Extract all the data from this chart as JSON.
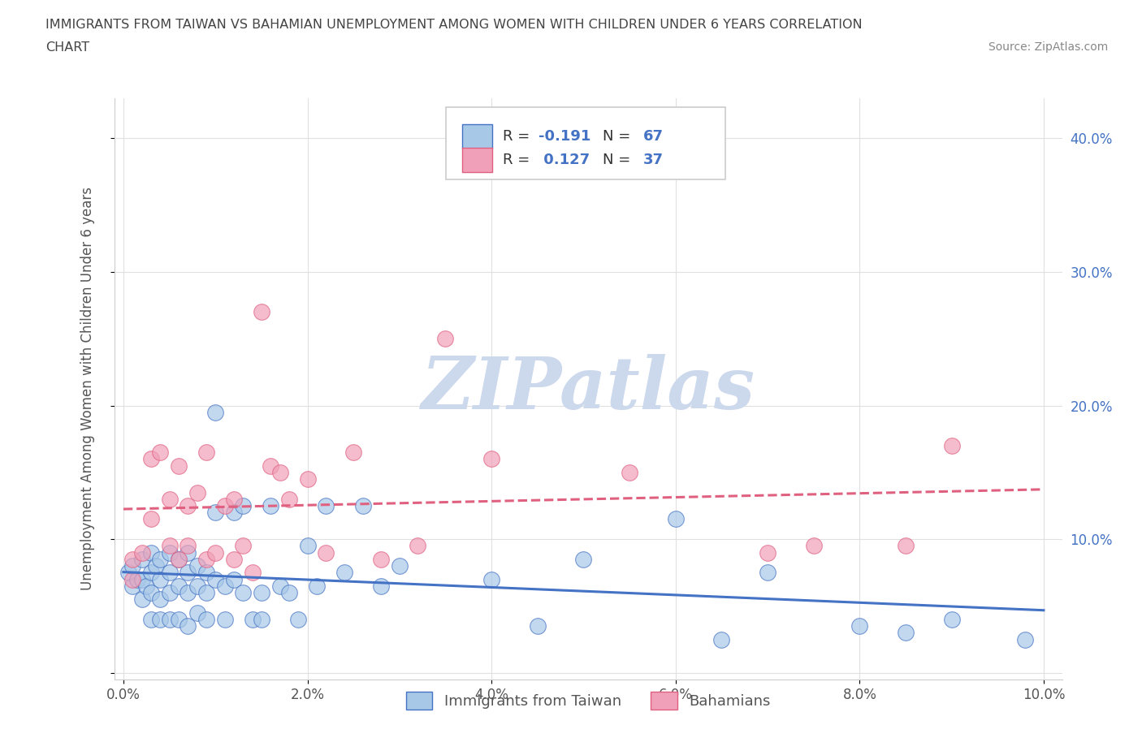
{
  "title_line1": "IMMIGRANTS FROM TAIWAN VS BAHAMIAN UNEMPLOYMENT AMONG WOMEN WITH CHILDREN UNDER 6 YEARS CORRELATION",
  "title_line2": "CHART",
  "source": "Source: ZipAtlas.com",
  "ylabel": "Unemployment Among Women with Children Under 6 years",
  "legend_label1": "Immigrants from Taiwan",
  "legend_label2": "Bahamians",
  "R1": -0.191,
  "N1": 67,
  "R2": 0.127,
  "N2": 37,
  "xlim": [
    -0.001,
    0.102
  ],
  "ylim": [
    -0.005,
    0.43
  ],
  "xticks": [
    0.0,
    0.02,
    0.04,
    0.06,
    0.08,
    0.1
  ],
  "xticklabels": [
    "0.0%",
    "2.0%",
    "4.0%",
    "6.0%",
    "8.0%",
    "10.0%"
  ],
  "yticks": [
    0.0,
    0.1,
    0.2,
    0.3,
    0.4
  ],
  "yticklabels": [
    "",
    "10.0%",
    "20.0%",
    "30.0%",
    "40.0%"
  ],
  "color_taiwan": "#a8c8e8",
  "color_bahamas": "#f0a0b8",
  "line_color_taiwan": "#4472c4",
  "line_color_bahamas": "#e06080",
  "watermark_color": "#ccd8ec",
  "background": "#ffffff",
  "taiwan_x": [
    0.0005,
    0.001,
    0.001,
    0.0015,
    0.002,
    0.002,
    0.002,
    0.0025,
    0.003,
    0.003,
    0.003,
    0.003,
    0.0035,
    0.004,
    0.004,
    0.004,
    0.004,
    0.005,
    0.005,
    0.005,
    0.005,
    0.006,
    0.006,
    0.006,
    0.007,
    0.007,
    0.007,
    0.007,
    0.008,
    0.008,
    0.008,
    0.009,
    0.009,
    0.009,
    0.01,
    0.01,
    0.01,
    0.011,
    0.011,
    0.012,
    0.012,
    0.013,
    0.013,
    0.014,
    0.015,
    0.015,
    0.016,
    0.017,
    0.018,
    0.019,
    0.02,
    0.021,
    0.022,
    0.024,
    0.026,
    0.028,
    0.03,
    0.04,
    0.045,
    0.05,
    0.06,
    0.065,
    0.07,
    0.08,
    0.085,
    0.09,
    0.098
  ],
  "taiwan_y": [
    0.075,
    0.08,
    0.065,
    0.07,
    0.085,
    0.07,
    0.055,
    0.065,
    0.09,
    0.075,
    0.06,
    0.04,
    0.08,
    0.085,
    0.07,
    0.055,
    0.04,
    0.09,
    0.075,
    0.06,
    0.04,
    0.085,
    0.065,
    0.04,
    0.09,
    0.075,
    0.06,
    0.035,
    0.08,
    0.065,
    0.045,
    0.075,
    0.06,
    0.04,
    0.195,
    0.12,
    0.07,
    0.065,
    0.04,
    0.12,
    0.07,
    0.125,
    0.06,
    0.04,
    0.06,
    0.04,
    0.125,
    0.065,
    0.06,
    0.04,
    0.095,
    0.065,
    0.125,
    0.075,
    0.125,
    0.065,
    0.08,
    0.07,
    0.035,
    0.085,
    0.115,
    0.025,
    0.075,
    0.035,
    0.03,
    0.04,
    0.025
  ],
  "bahamas_x": [
    0.001,
    0.001,
    0.002,
    0.003,
    0.003,
    0.004,
    0.005,
    0.005,
    0.006,
    0.006,
    0.007,
    0.007,
    0.008,
    0.009,
    0.009,
    0.01,
    0.011,
    0.012,
    0.012,
    0.013,
    0.014,
    0.015,
    0.016,
    0.017,
    0.018,
    0.02,
    0.022,
    0.025,
    0.028,
    0.032,
    0.035,
    0.04,
    0.055,
    0.07,
    0.075,
    0.085,
    0.09
  ],
  "bahamas_y": [
    0.085,
    0.07,
    0.09,
    0.16,
    0.115,
    0.165,
    0.095,
    0.13,
    0.155,
    0.085,
    0.125,
    0.095,
    0.135,
    0.165,
    0.085,
    0.09,
    0.125,
    0.13,
    0.085,
    0.095,
    0.075,
    0.27,
    0.155,
    0.15,
    0.13,
    0.145,
    0.09,
    0.165,
    0.085,
    0.095,
    0.25,
    0.16,
    0.15,
    0.09,
    0.095,
    0.095,
    0.17
  ]
}
